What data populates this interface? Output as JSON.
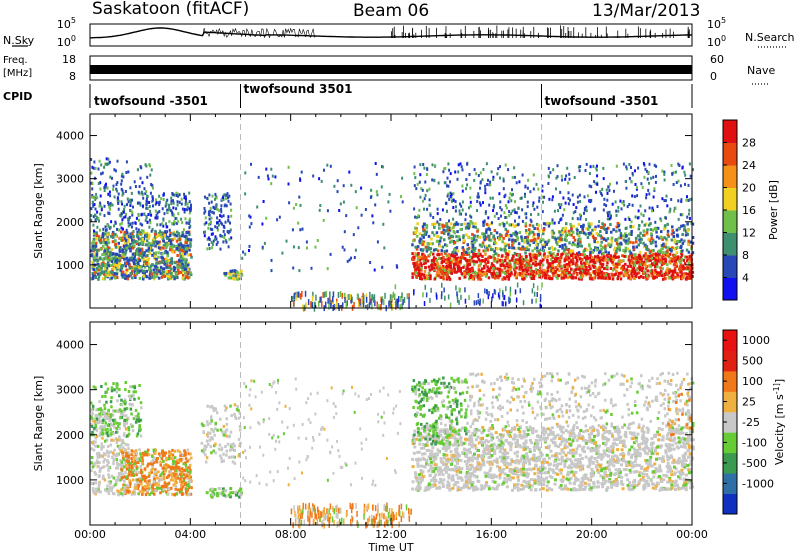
{
  "header": {
    "station": "Saskatoon (fitACF)",
    "beam": "Beam 06",
    "date": "13/Mar/2013"
  },
  "top_panel": {
    "left_label": "N.Sky",
    "right_label": "N.Search",
    "y_ticks": [
      "10^5",
      "10^0"
    ],
    "right_ticks": [
      "10^5",
      "10^0"
    ]
  },
  "freq_panel": {
    "left_label_1": "Freq.",
    "left_label_2": "[MHz]",
    "right_label": "Nave",
    "y_ticks": [
      "18",
      "8"
    ],
    "right_ticks": [
      "60",
      "0"
    ]
  },
  "cpid": {
    "label": "CPID",
    "entries": [
      "twofsound -3501",
      "twofsound 3501",
      "twofsound -3501"
    ]
  },
  "chart_data": [
    {
      "type": "heatmap",
      "panel": "power",
      "ylabel": "Slant Range [km]",
      "y_ticks": [
        "1000",
        "2000",
        "3000",
        "4000"
      ],
      "ylim": [
        0,
        4500
      ],
      "colorbar_label": "Power [dB]",
      "colorbar_ticks": [
        "4",
        "8",
        "12",
        "16",
        "20",
        "24",
        "28"
      ],
      "colorbar_colors": [
        "#1010f0",
        "#2848b8",
        "#3e8f70",
        "#6fbf4a",
        "#f0d020",
        "#f59018",
        "#e84a10",
        "#e01010"
      ],
      "scatter_regions_km": [
        {
          "x": [
            0.0,
            4.0
          ],
          "y": [
            700,
            2500
          ],
          "level": "mid"
        },
        {
          "x": [
            4.5,
            5.6
          ],
          "y": [
            1500,
            2700
          ],
          "level": "low"
        },
        {
          "x": [
            12.8,
            24.0
          ],
          "y": [
            700,
            2000
          ],
          "level": "high"
        },
        {
          "x": [
            12.8,
            24.0
          ],
          "y": [
            2000,
            3300
          ],
          "level": "low"
        }
      ]
    },
    {
      "type": "heatmap",
      "panel": "velocity",
      "ylabel": "Slant Range [km]",
      "y_ticks": [
        "1000",
        "2000",
        "3000",
        "4000"
      ],
      "ylim": [
        0,
        4500
      ],
      "xlabel": "Time UT",
      "x_ticks": [
        "00:00",
        "04:00",
        "08:00",
        "12:00",
        "16:00",
        "20:00",
        "00:00"
      ],
      "xlim": [
        0,
        24
      ],
      "colorbar_label": "Velocity [m s^-1]",
      "colorbar_ticks": [
        "1000",
        "500",
        "100",
        "25",
        "-25",
        "-100",
        "-500",
        "-1000"
      ],
      "colorbar_colors": [
        "#1030c0",
        "#2f6fa8",
        "#3a9a50",
        "#66cc33",
        "#c8c8c8",
        "#f0b040",
        "#f07818",
        "#e02010",
        "#e81010"
      ]
    }
  ]
}
